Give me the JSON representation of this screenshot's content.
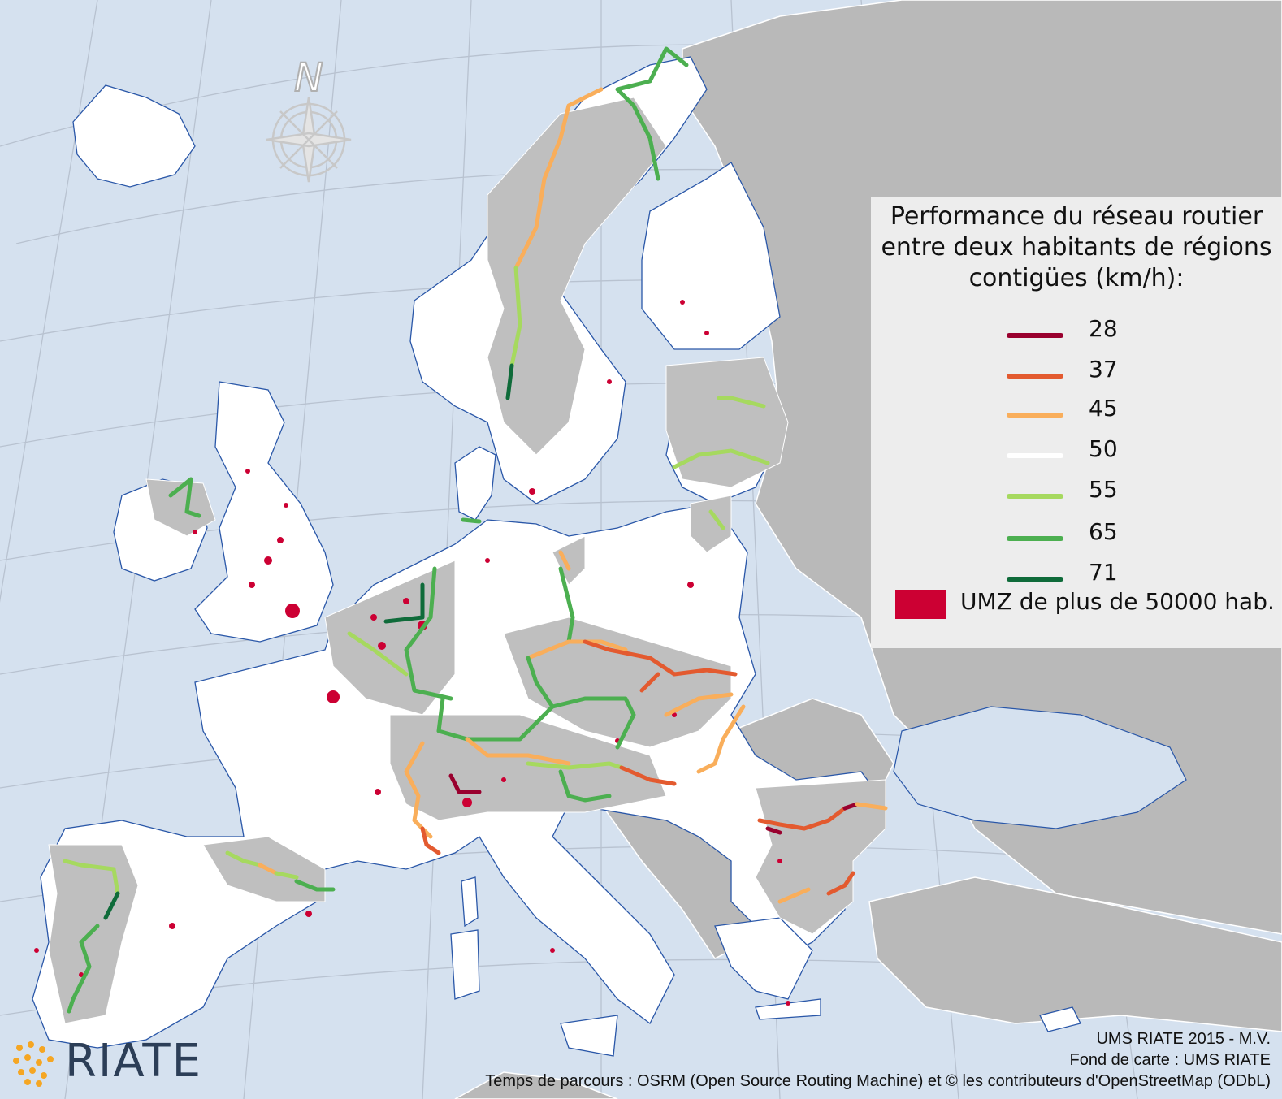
{
  "legend": {
    "title_lines": [
      "Performance du réseau routier",
      "entre deux habitants de régions",
      "contigües (km/h):"
    ],
    "classes": [
      {
        "value": "28",
        "color": "#99002e"
      },
      {
        "value": "37",
        "color": "#e35a2f"
      },
      {
        "value": "45",
        "color": "#f9ae5b"
      },
      {
        "value": "50",
        "color": "#ffffff"
      },
      {
        "value": "55",
        "color": "#a6d95f"
      },
      {
        "value": "65",
        "color": "#4caf50"
      },
      {
        "value": "71",
        "color": "#0f6b3a"
      }
    ],
    "umz": {
      "label": "UMZ de plus de 50000 hab.",
      "color": "#cc0033"
    }
  },
  "compass": {
    "north_label": "N"
  },
  "credits": {
    "line1": "UMS RIATE 2015 - M.V.",
    "line2": "Fond de carte : UMS RIATE",
    "line3": "Temps de parcours : OSRM (Open Source Routing Machine) et © les contributeurs d'OpenStreetMap (ODbL)"
  },
  "logo": {
    "text": "RIATE",
    "dot_color": "#f5a623",
    "text_color": "#2c3e57"
  },
  "colors": {
    "sea": "#d5e1ef",
    "land_outside": "#b9b9b9",
    "land_eu": "#ffffff",
    "border_regions": "#bfbfbf",
    "coast": "#2a57a8",
    "graticule": "#b8c2d0"
  }
}
